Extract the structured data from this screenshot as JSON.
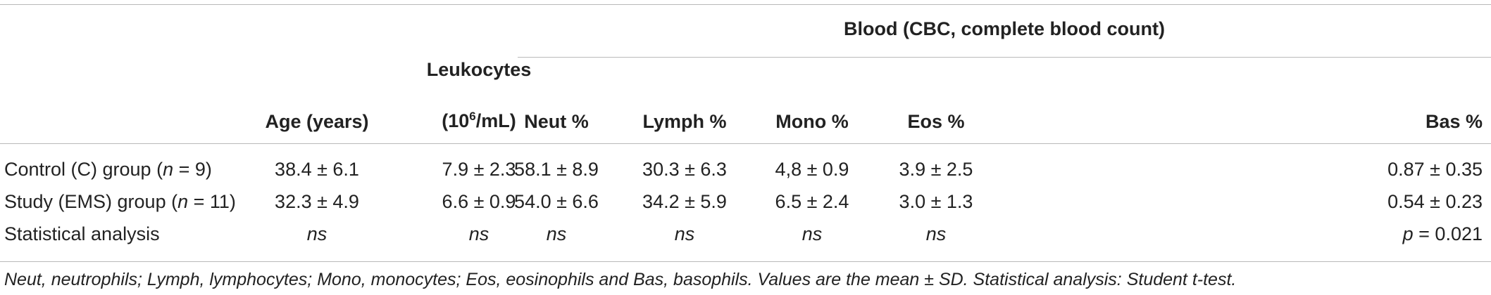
{
  "table": {
    "group_header": "Blood (CBC, complete blood count)",
    "columns": {
      "age": "Age (years)",
      "leukocytes_line1": "Leukocytes",
      "leukocytes_line2_pre": "(10",
      "leukocytes_line2_sup": "6",
      "leukocytes_line2_post": "/mL)",
      "neut": "Neut %",
      "lymph": "Lymph %",
      "mono": "Mono %",
      "eos": "Eos %",
      "bas": "Bas %"
    },
    "rows": [
      {
        "label_pre": "Control (C) group (",
        "label_n": "n",
        "label_post": " = 9)",
        "values": [
          "38.4 ± 6.1",
          "7.9 ± 2.3",
          "58.1 ± 8.9",
          "30.3 ± 6.3",
          "4,8 ± 0.9",
          "3.9 ± 2.5",
          "0.87 ± 0.35"
        ]
      },
      {
        "label_pre": "Study (EMS) group (",
        "label_n": "n",
        "label_post": " = 11)",
        "values": [
          "32.3 ± 4.9",
          "6.6 ± 0.9",
          "54.0 ± 6.6",
          "34.2 ± 5.9",
          "6.5 ± 2.4",
          "3.0 ± 1.3",
          "0.54 ± 0.23"
        ]
      },
      {
        "label_pre": "Statistical analysis",
        "values": [
          "ns",
          "ns",
          "ns",
          "ns",
          "ns",
          "ns"
        ],
        "last_p": "p",
        "last_rest": " = 0.021"
      }
    ],
    "footnote": "Neut, neutrophils; Lymph, lymphocytes; Mono, monocytes; Eos, eosinophils and Bas, basophils. Values are the mean ± SD. Statistical analysis: Student t-test."
  }
}
